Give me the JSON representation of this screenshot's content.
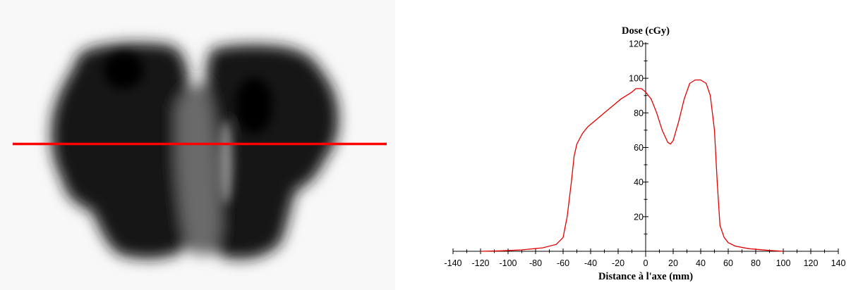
{
  "colors": {
    "profile_line": "#e60000",
    "cut_line": "#ff0000",
    "axis": "#000000",
    "film_background": "#f8f8f8",
    "film_dark": "#141414"
  },
  "dose_map": {
    "description_free_image": true,
    "cut_line_orientation": "horizontal"
  },
  "chart_data": {
    "type": "line",
    "title": "",
    "xlabel": "Distance à l'axe (mm)",
    "ylabel": "Dose (cGy)",
    "xlim": [
      -140,
      140
    ],
    "ylim": [
      0,
      120
    ],
    "xticks": [
      -140,
      -120,
      -100,
      -80,
      -60,
      -40,
      -20,
      0,
      20,
      40,
      60,
      80,
      100,
      120,
      140
    ],
    "yticks": [
      20,
      40,
      60,
      80,
      100,
      120
    ],
    "grid": false,
    "legend": "none",
    "series": [
      {
        "x": [
          -120,
          -105,
          -90,
          -75,
          -65,
          -60,
          -57,
          -54,
          -52,
          -50,
          -46,
          -42,
          -36,
          -30,
          -24,
          -18,
          -14,
          -10,
          -7,
          -3,
          0,
          4,
          8,
          12,
          16,
          18,
          20,
          24,
          28,
          32,
          36,
          40,
          44,
          47,
          50,
          52,
          54,
          57,
          60,
          65,
          75,
          90,
          100
        ],
        "y": [
          0,
          0.3,
          0.8,
          2,
          4,
          8,
          20,
          40,
          55,
          62,
          68,
          72,
          76,
          80,
          84,
          88,
          90,
          92,
          94,
          94,
          92,
          88,
          80,
          70,
          63,
          62,
          64,
          75,
          88,
          97,
          99,
          99,
          97,
          90,
          70,
          40,
          15,
          8,
          5,
          3,
          1.5,
          0.5,
          0
        ]
      }
    ]
  }
}
